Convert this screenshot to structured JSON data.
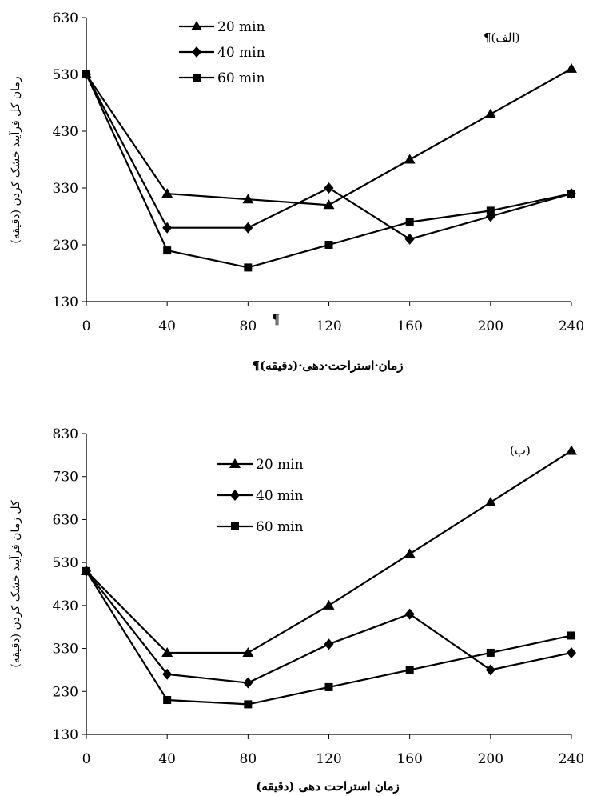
{
  "chart_data": [
    {
      "type": "line",
      "panel_label": "(الف)¶",
      "xlabel": "زمان·استراحت·دهی·(دقیقه)¶",
      "ylabel": "زمان کل فرآیند خشک کردن (دقیقه)",
      "x": [
        0,
        40,
        80,
        120,
        160,
        200,
        240
      ],
      "xticks": [
        "0",
        "40",
        "80",
        "120",
        "160",
        "200",
        "240"
      ],
      "yticks": [
        "130",
        "230",
        "330",
        "430",
        "530",
        "630"
      ],
      "ylim": [
        130,
        630
      ],
      "stray_mark": "¶",
      "legend_position": "top-left",
      "series": [
        {
          "name": "20 min",
          "marker": "triangle",
          "values": [
            530,
            320,
            310,
            300,
            380,
            460,
            540
          ]
        },
        {
          "name": "40 min",
          "marker": "diamond",
          "values": [
            530,
            260,
            260,
            330,
            240,
            280,
            320
          ]
        },
        {
          "name": "60 min",
          "marker": "square",
          "values": [
            530,
            220,
            190,
            230,
            270,
            290,
            320
          ]
        }
      ]
    },
    {
      "type": "line",
      "panel_label": "(ب)",
      "xlabel": "زمان استراحت دهی (دقیقه)",
      "ylabel": "کل زمان فرآیند خشک کردن (دقیقه)",
      "x": [
        0,
        40,
        80,
        120,
        160,
        200,
        240
      ],
      "xticks": [
        "0",
        "40",
        "80",
        "120",
        "160",
        "200",
        "240"
      ],
      "yticks": [
        "130",
        "230",
        "330",
        "430",
        "530",
        "630",
        "730",
        "830"
      ],
      "ylim": [
        130,
        830
      ],
      "legend_position": "top-left",
      "series": [
        {
          "name": "20 min",
          "marker": "triangle",
          "values": [
            510,
            320,
            320,
            430,
            550,
            670,
            790
          ]
        },
        {
          "name": "40 min",
          "marker": "diamond",
          "values": [
            510,
            270,
            250,
            340,
            410,
            280,
            320
          ]
        },
        {
          "name": "60 min",
          "marker": "square",
          "values": [
            510,
            210,
            200,
            240,
            280,
            320,
            360
          ]
        }
      ]
    }
  ]
}
